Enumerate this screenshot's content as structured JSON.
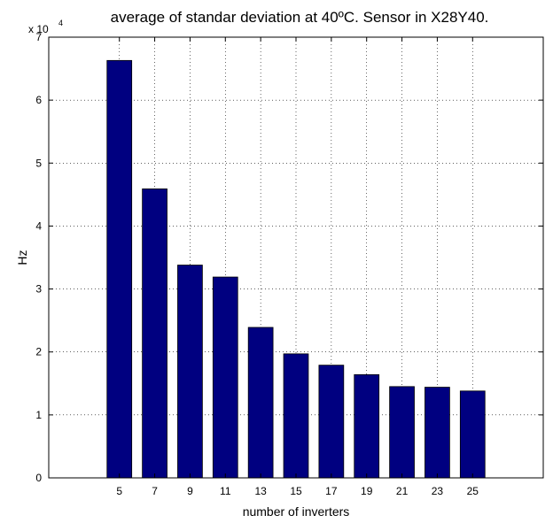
{
  "chart_data": {
    "type": "bar",
    "title": "average of standar deviation at 40ºC. Sensor in X28Y40.",
    "xlabel": "number of inverters",
    "ylabel": "Hz",
    "y_exponent_label": "x 10",
    "y_exponent_power": "4",
    "categories": [
      "5",
      "7",
      "9",
      "11",
      "13",
      "15",
      "17",
      "19",
      "21",
      "23",
      "25"
    ],
    "values": [
      66300,
      45900,
      33800,
      31900,
      23900,
      19700,
      17900,
      16400,
      14500,
      14400,
      13800
    ],
    "ylim": [
      0,
      70000
    ],
    "y_ticks": [
      0,
      1,
      2,
      3,
      4,
      5,
      6,
      7
    ],
    "x_range": [
      1,
      29
    ],
    "grid": true,
    "bar_color": "#000080"
  }
}
